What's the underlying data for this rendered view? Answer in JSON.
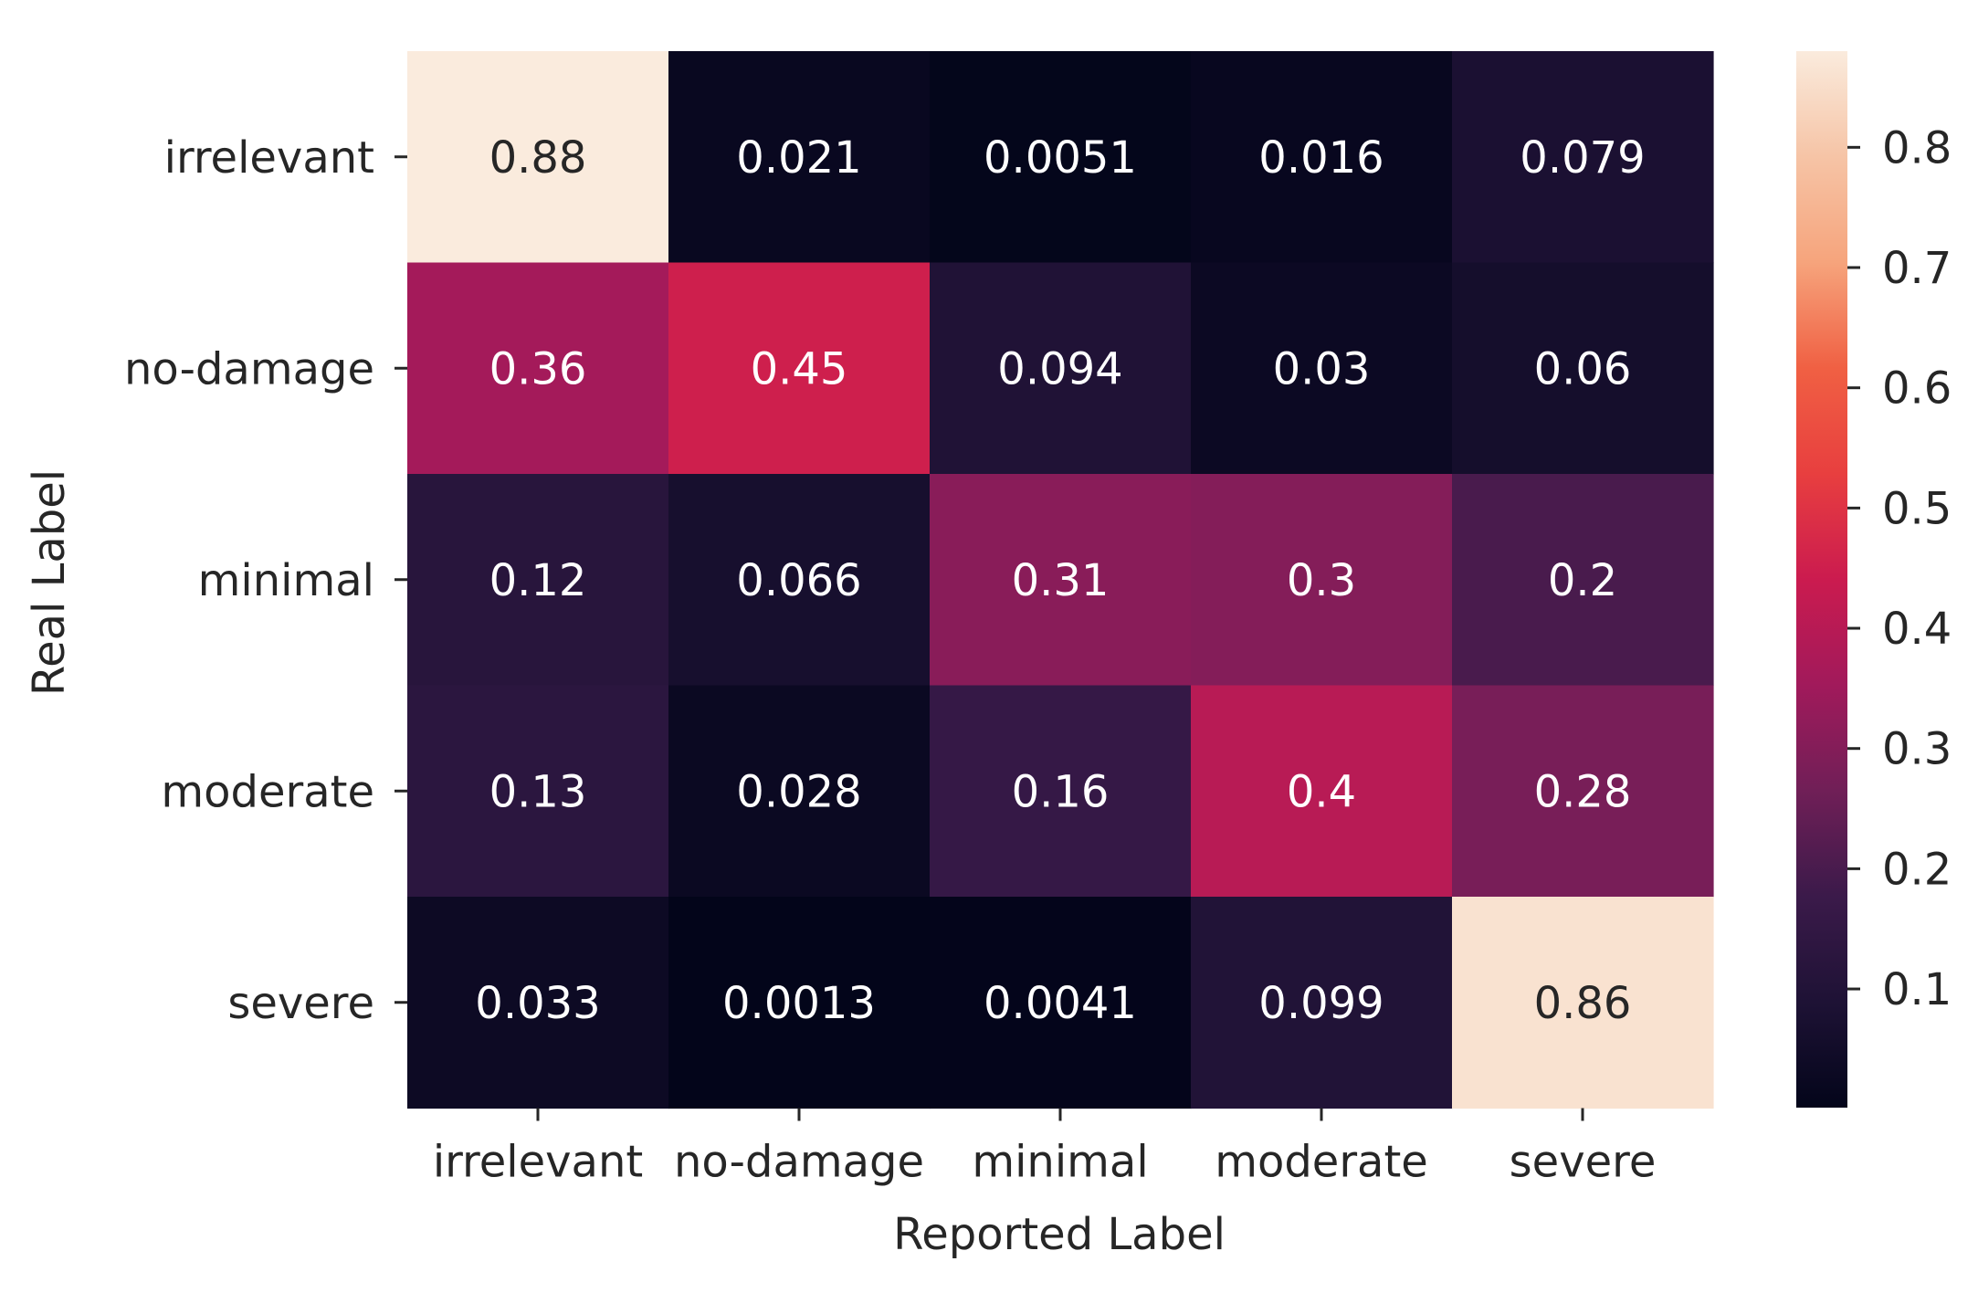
{
  "chart_data": {
    "type": "heatmap",
    "title": "",
    "xlabel": "Reported Label",
    "ylabel": "Real Label",
    "x_categories": [
      "irrelevant",
      "no-damage",
      "minimal",
      "moderate",
      "severe"
    ],
    "y_categories": [
      "irrelevant",
      "no-damage",
      "minimal",
      "moderate",
      "severe"
    ],
    "cells": [
      [
        "0.88",
        "0.021",
        "0.0051",
        "0.016",
        "0.079"
      ],
      [
        "0.36",
        "0.45",
        "0.094",
        "0.03",
        "0.06"
      ],
      [
        "0.12",
        "0.066",
        "0.31",
        "0.3",
        "0.2"
      ],
      [
        "0.13",
        "0.028",
        "0.16",
        "0.4",
        "0.28"
      ],
      [
        "0.033",
        "0.0013",
        "0.0041",
        "0.099",
        "0.86"
      ]
    ],
    "colorbar": {
      "min": 0.0013,
      "max": 0.88,
      "ticks": [
        "0.1",
        "0.2",
        "0.3",
        "0.4",
        "0.5",
        "0.6",
        "0.7",
        "0.8"
      ],
      "colormap": "rocket"
    }
  }
}
